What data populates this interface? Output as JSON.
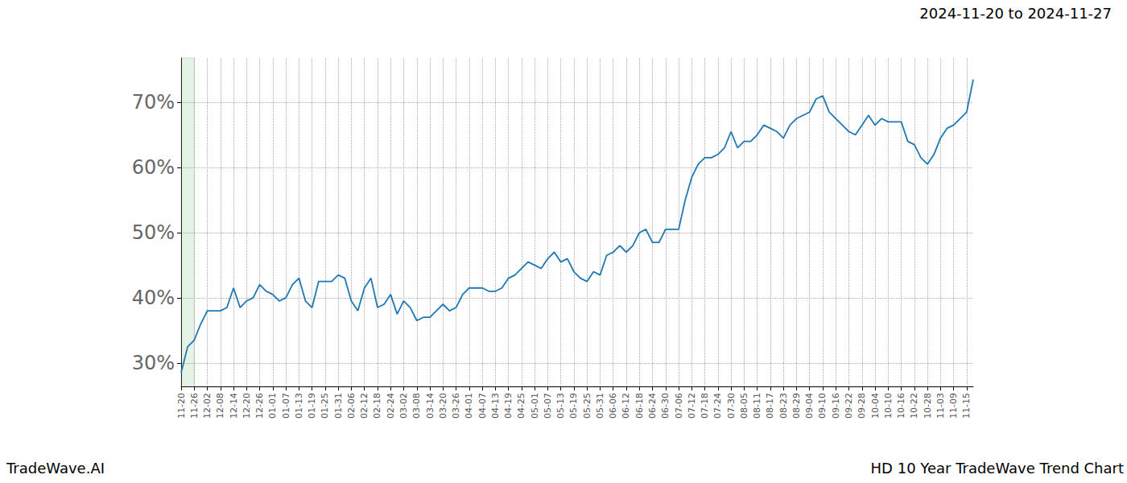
{
  "chart_data": {
    "type": "line",
    "title": "2024-11-20 to 2024-11-27",
    "annotations": [
      "TradeWave.AI",
      "HD 10 Year TradeWave Trend Chart"
    ],
    "categories": [
      "11-20",
      null,
      "11-26",
      null,
      "12-02",
      null,
      "12-08",
      null,
      "12-14",
      null,
      "12-20",
      null,
      "12-26",
      null,
      "01-01",
      null,
      "01-07",
      null,
      "01-13",
      null,
      "01-19",
      null,
      "01-25",
      null,
      "01-31",
      null,
      "02-06",
      null,
      "02-12",
      null,
      "02-18",
      null,
      "02-24",
      null,
      "03-02",
      null,
      "03-08",
      null,
      "03-14",
      null,
      "03-20",
      null,
      "03-26",
      null,
      "04-01",
      null,
      "04-07",
      null,
      "04-13",
      null,
      "04-19",
      null,
      "04-25",
      null,
      "05-01",
      null,
      "05-07",
      null,
      "05-13",
      null,
      "05-19",
      null,
      "05-25",
      null,
      "05-31",
      null,
      "06-06",
      null,
      "06-12",
      null,
      "06-18",
      null,
      "06-24",
      null,
      "06-30",
      null,
      "07-06",
      null,
      "07-12",
      null,
      "07-18",
      null,
      "07-24",
      null,
      "07-30",
      null,
      "08-05",
      null,
      "08-11",
      null,
      "08-17",
      null,
      "08-23",
      null,
      "08-29",
      null,
      "09-04",
      null,
      "09-10",
      null,
      "09-16",
      null,
      "09-22",
      null,
      "09-28",
      null,
      "10-04",
      null,
      "10-10",
      null,
      "10-16",
      null,
      "10-22",
      null,
      "10-28",
      null,
      "11-03",
      null,
      "11-09",
      null,
      "11-15",
      null
    ],
    "values": [
      28.5,
      32.5,
      33.5,
      36,
      38,
      38,
      38,
      38.5,
      41.5,
      38.5,
      39.5,
      40,
      42,
      41,
      40.5,
      39.5,
      40,
      42,
      43,
      39.5,
      38.5,
      42.5,
      42.5,
      42.5,
      43.5,
      43,
      39.5,
      38,
      41.5,
      43,
      38.5,
      39,
      40.5,
      37.5,
      39.5,
      38.5,
      36.5,
      37,
      37,
      38,
      39,
      38,
      38.5,
      40.5,
      41.5,
      41.5,
      41.5,
      41,
      41,
      41.5,
      43,
      43.5,
      44.5,
      45.5,
      45,
      44.5,
      46,
      47,
      45.5,
      46,
      44,
      43,
      42.5,
      44,
      43.5,
      46.5,
      47,
      48,
      47,
      48,
      50,
      50.5,
      48.5,
      48.5,
      50.5,
      50.5,
      50.5,
      55,
      58.5,
      60.5,
      61.5,
      61.5,
      62,
      63,
      65.5,
      63,
      64,
      64,
      65,
      66.5,
      66,
      65.5,
      64.5,
      66.5,
      67.5,
      68,
      68.5,
      70.5,
      71,
      68.5,
      67.5,
      66.5,
      65.5,
      65,
      66.5,
      68,
      66.5,
      67.5,
      67,
      67,
      67,
      64,
      63.5,
      61.5,
      60.5,
      62,
      64.5,
      66,
      66.5,
      67.5,
      68.5,
      73.5
    ],
    "color": "#1f77b4",
    "shaded_range": [
      "11-20",
      "11-26"
    ],
    "ylim": [
      26.4,
      76.8
    ],
    "yticks": [
      {
        "value": 30,
        "label": "30%"
      },
      {
        "value": 40,
        "label": "40%"
      },
      {
        "value": 50,
        "label": "50%"
      },
      {
        "value": 60,
        "label": "60%"
      },
      {
        "value": 70,
        "label": "70%"
      }
    ],
    "grid": true
  }
}
